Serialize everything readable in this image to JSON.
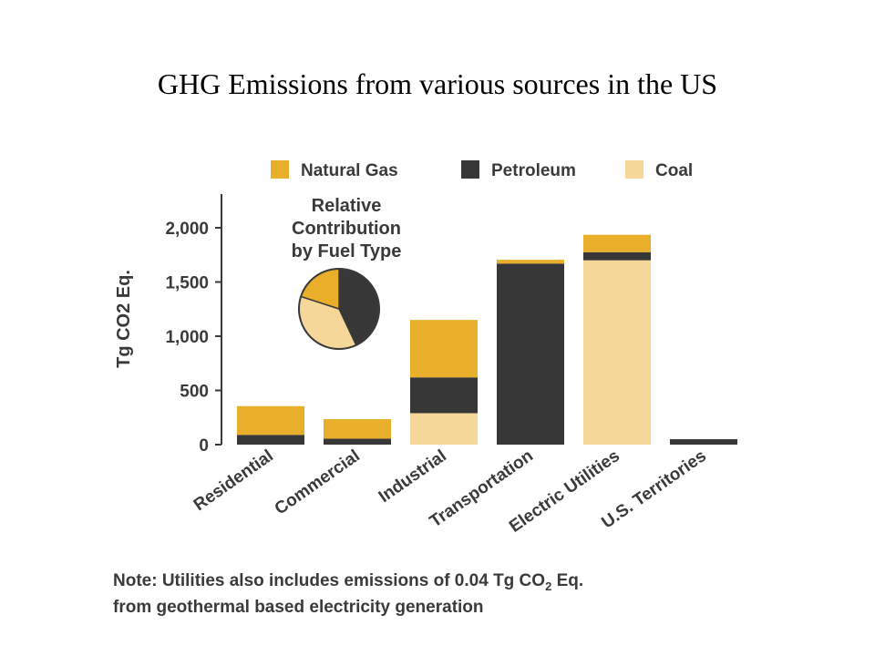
{
  "slide": {
    "title": "GHG Emissions from various sources in the US"
  },
  "colors": {
    "natural_gas": "#E9AF2A",
    "petroleum": "#373737",
    "coal": "#F6D79A",
    "axis": "#3a3a3a",
    "text": "#3a3a3a"
  },
  "chart_data": {
    "type": "bar",
    "stacked": true,
    "categories": [
      "Residential",
      "Commercial",
      "Industrial",
      "Transportation",
      "Electric Utilities",
      "U.S. Territories"
    ],
    "series": [
      {
        "name": "Coal",
        "color_key": "coal",
        "values": [
          0,
          0,
          290,
          0,
          1700,
          0
        ]
      },
      {
        "name": "Petroleum",
        "color_key": "petroleum",
        "values": [
          90,
          55,
          330,
          1670,
          75,
          50
        ]
      },
      {
        "name": "Natural Gas",
        "color_key": "natural_gas",
        "values": [
          265,
          180,
          530,
          35,
          160,
          0
        ]
      }
    ],
    "legend_order": [
      "Natural Gas",
      "Petroleum",
      "Coal"
    ],
    "legend_position": "top",
    "ylabel": "Tg CO2 Eq.",
    "ylim": [
      0,
      2000
    ],
    "yticks": [
      0,
      500,
      1000,
      1500,
      2000
    ],
    "ytick_labels": [
      "0",
      "500",
      "1,000",
      "1,500",
      "2,000"
    ],
    "grid": false,
    "inset_pie": {
      "title_lines": [
        "Relative",
        "Contribution",
        "by Fuel Type"
      ],
      "slices": [
        {
          "name": "Petroleum",
          "color_key": "petroleum",
          "value": 0.43
        },
        {
          "name": "Coal",
          "color_key": "coal",
          "value": 0.37
        },
        {
          "name": "Natural Gas",
          "color_key": "natural_gas",
          "value": 0.2
        }
      ]
    }
  },
  "note": {
    "line1_prefix": "Note:  Utilities also includes emissions of 0.04 Tg CO",
    "line1_sub": "2",
    "line1_suffix": " Eq.",
    "line2": "from geothermal based electricity generation"
  }
}
